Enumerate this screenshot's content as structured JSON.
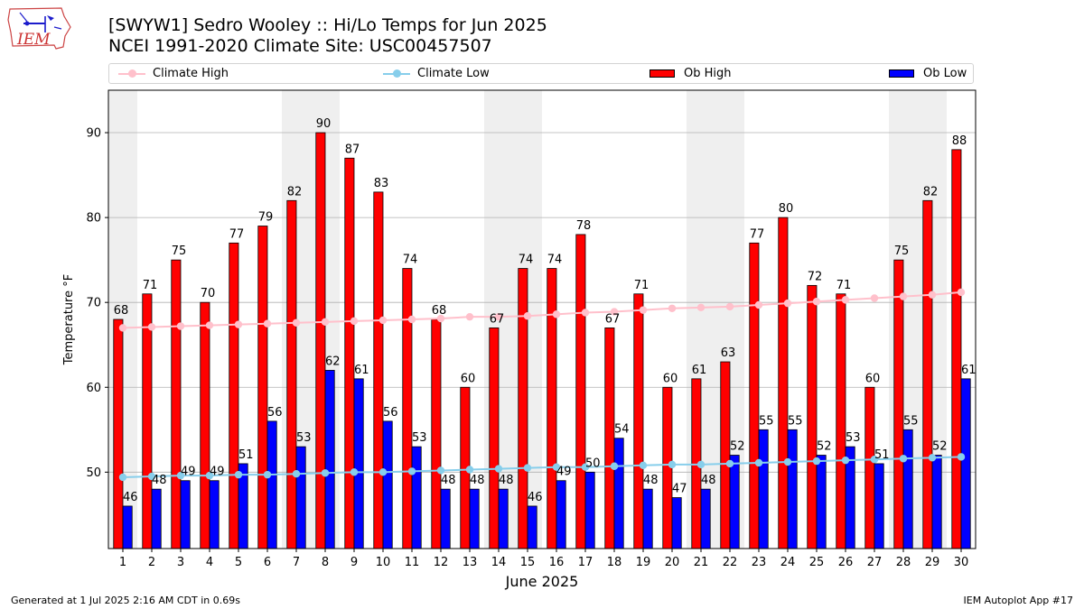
{
  "header": {
    "logo_text": "IEM",
    "title_line1": "[SWYW1] Sedro Wooley :: Hi/Lo Temps for Jun 2025",
    "title_line2": "NCEI 1991-2020 Climate Site: USC00457507"
  },
  "legend": {
    "climate_high": "Climate High",
    "climate_low": "Climate Low",
    "ob_high": "Ob High",
    "ob_low": "Ob Low"
  },
  "colors": {
    "ob_high": "#ff0000",
    "ob_low": "#0000ff",
    "climate_high": "#ffc0cb",
    "climate_low": "#87ceeb",
    "weekend_band": "#efefef",
    "grid": "#b0b0b0"
  },
  "footer": {
    "left": "Generated at 1 Jul 2025 2:16 AM CDT in 0.69s",
    "right": "IEM Autoplot App #17"
  },
  "chart_data": {
    "type": "bar",
    "xlabel": "June 2025",
    "ylabel": "Temperature °F",
    "ylim": [
      41,
      95
    ],
    "yticks": [
      50,
      60,
      70,
      80,
      90
    ],
    "grid": "horizontal",
    "legend_position": "top",
    "weekend_days": [
      1,
      7,
      8,
      14,
      15,
      21,
      22,
      28,
      29
    ],
    "categories": [
      "1",
      "2",
      "3",
      "4",
      "5",
      "6",
      "7",
      "8",
      "9",
      "10",
      "11",
      "12",
      "13",
      "14",
      "15",
      "16",
      "17",
      "18",
      "19",
      "20",
      "21",
      "22",
      "23",
      "24",
      "25",
      "26",
      "27",
      "28",
      "29",
      "30"
    ],
    "series": [
      {
        "name": "Ob High",
        "kind": "bar",
        "values": [
          68,
          71,
          75,
          70,
          77,
          79,
          82,
          90,
          87,
          83,
          74,
          68,
          60,
          67,
          74,
          74,
          78,
          67,
          71,
          60,
          61,
          63,
          77,
          80,
          72,
          71,
          60,
          75,
          82,
          88
        ]
      },
      {
        "name": "Ob Low",
        "kind": "bar",
        "values": [
          46,
          48,
          49,
          49,
          51,
          56,
          53,
          62,
          61,
          56,
          53,
          48,
          48,
          48,
          46,
          49,
          50,
          54,
          48,
          47,
          48,
          52,
          55,
          55,
          52,
          53,
          51,
          55,
          52,
          61
        ]
      },
      {
        "name": "Climate High",
        "kind": "line",
        "values": [
          67.0,
          67.1,
          67.2,
          67.3,
          67.4,
          67.5,
          67.6,
          67.7,
          67.8,
          67.9,
          68.0,
          68.1,
          68.3,
          68.3,
          68.4,
          68.6,
          68.8,
          68.9,
          69.1,
          69.3,
          69.4,
          69.5,
          69.7,
          69.9,
          70.1,
          70.3,
          70.5,
          70.7,
          70.9,
          71.2
        ]
      },
      {
        "name": "Climate Low",
        "kind": "line",
        "values": [
          49.4,
          49.5,
          49.6,
          49.6,
          49.7,
          49.7,
          49.8,
          49.9,
          50.0,
          50.0,
          50.1,
          50.2,
          50.3,
          50.4,
          50.5,
          50.6,
          50.6,
          50.7,
          50.8,
          50.9,
          50.9,
          51.0,
          51.1,
          51.2,
          51.3,
          51.4,
          51.5,
          51.6,
          51.7,
          51.8
        ]
      }
    ]
  }
}
